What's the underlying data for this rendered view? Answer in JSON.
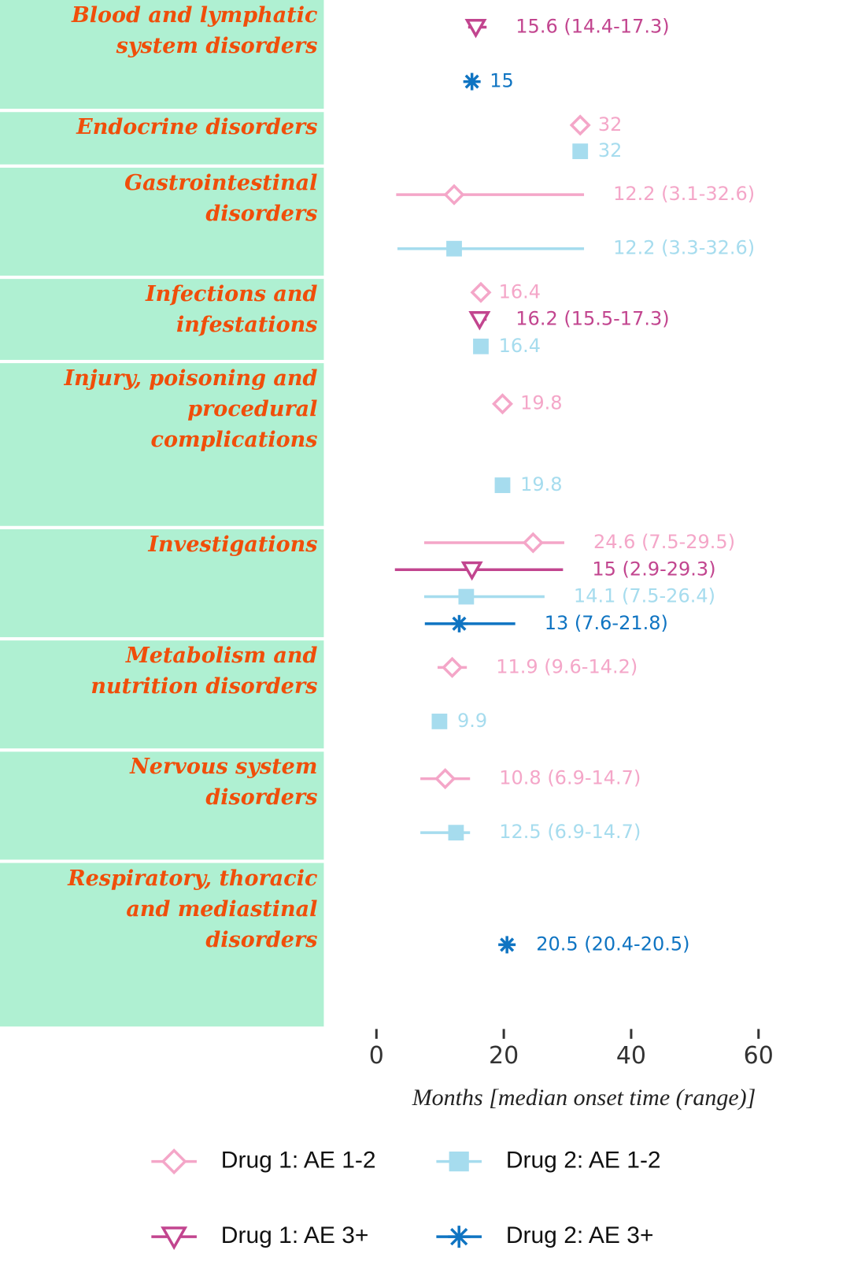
{
  "chart_data": {
    "type": "dotrange",
    "xlabel": "Months [median onset time (range)]",
    "xlim": [
      0,
      60
    ],
    "xticks": [
      0,
      20,
      40,
      60
    ],
    "legend": "bottom",
    "categories": [
      "Blood and lymphatic system disorders",
      "Endocrine disorders",
      "Gastrointestinal disorders",
      "Infections and infestations",
      "Injury, poisoning and procedural complications",
      "Investigations",
      "Metabolism and nutrition disorders",
      "Nervous system disorders",
      "Respiratory, thoracic and mediastinal disorders"
    ],
    "series": [
      {
        "name": "Drug 1: AE 1-2",
        "color": "#f4a6c8",
        "marker": "diamond",
        "values": [
          null,
          32,
          12.2,
          16.4,
          19.8,
          24.6,
          11.9,
          10.8,
          null
        ],
        "lows": [
          null,
          null,
          3.1,
          null,
          null,
          7.5,
          9.6,
          6.9,
          null
        ],
        "highs": [
          null,
          null,
          32.6,
          null,
          null,
          29.5,
          14.2,
          14.7,
          null
        ],
        "value_labels": [
          null,
          "32",
          "12.2 (3.1-32.6)",
          "16.4",
          "19.8",
          "24.6 (7.5-29.5)",
          "11.9 (9.6-14.2)",
          "10.8 (6.9-14.7)",
          null
        ]
      },
      {
        "name": "Drug 1: AE 3+",
        "color": "#c2458f",
        "marker": "triangle",
        "values": [
          15.6,
          null,
          null,
          16.2,
          null,
          15,
          null,
          null,
          null
        ],
        "lows": [
          14.4,
          null,
          null,
          15.5,
          null,
          2.9,
          null,
          null,
          null
        ],
        "highs": [
          17.3,
          null,
          null,
          17.3,
          null,
          29.3,
          null,
          null,
          null
        ],
        "value_labels": [
          "15.6 (14.4-17.3)",
          null,
          null,
          "16.2 (15.5-17.3)",
          null,
          "15 (2.9-29.3)",
          null,
          null,
          null
        ]
      },
      {
        "name": "Drug 2: AE 1-2",
        "color": "#a6dcee",
        "marker": "square",
        "values": [
          null,
          32,
          12.2,
          16.4,
          19.8,
          14.1,
          9.9,
          12.5,
          null
        ],
        "lows": [
          null,
          null,
          3.3,
          null,
          null,
          7.5,
          null,
          6.9,
          null
        ],
        "highs": [
          null,
          null,
          32.6,
          null,
          null,
          26.4,
          null,
          14.7,
          null
        ],
        "value_labels": [
          null,
          "32",
          "12.2 (3.3-32.6)",
          "16.4",
          "19.8",
          "14.1 (7.5-26.4)",
          "9.9",
          "12.5 (6.9-14.7)",
          null
        ]
      },
      {
        "name": "Drug 2: AE 3+",
        "color": "#0f74c2",
        "marker": "asterisk",
        "values": [
          15,
          null,
          null,
          null,
          null,
          13,
          null,
          null,
          20.5
        ],
        "lows": [
          null,
          null,
          null,
          null,
          null,
          7.6,
          null,
          null,
          20.4
        ],
        "highs": [
          null,
          null,
          null,
          null,
          null,
          21.8,
          null,
          null,
          20.5
        ],
        "value_labels": [
          "15",
          null,
          null,
          null,
          null,
          "13 (7.6-21.8)",
          null,
          null,
          "20.5 (20.4-20.5)"
        ]
      }
    ]
  }
}
